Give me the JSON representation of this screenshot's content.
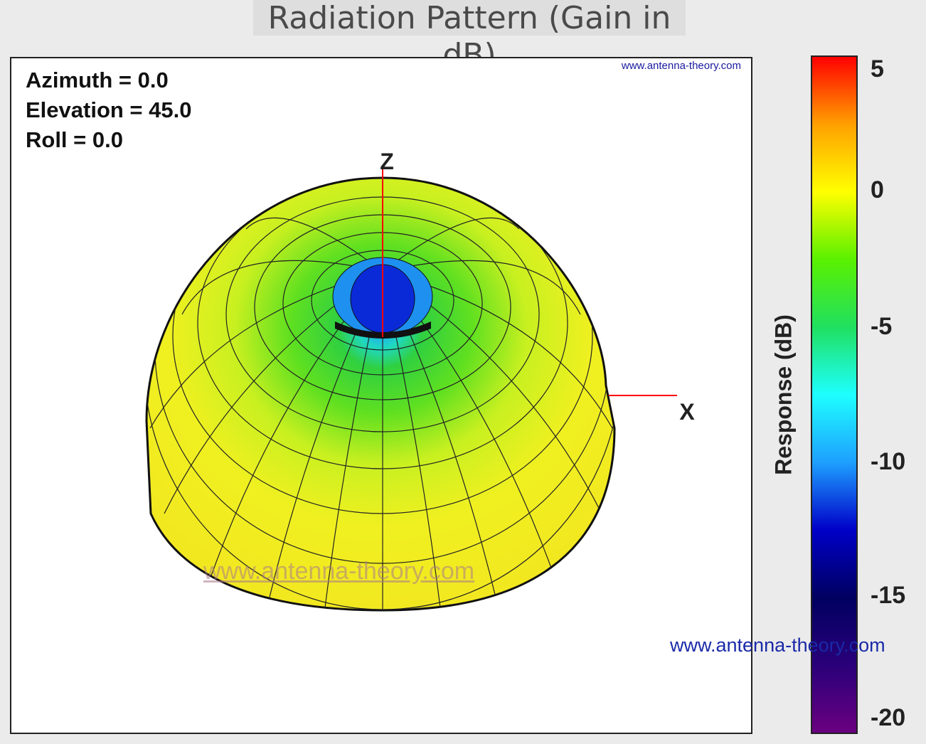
{
  "title": "Radiation Pattern (Gain in dB)",
  "params": [
    "Azimuth = 0.0",
    "Elevation = 45.0",
    "Roll = 0.0"
  ],
  "axes": {
    "z_label": "Z",
    "x_label": "X"
  },
  "watermarks": {
    "small": "www.antenna-theory.com",
    "faint": "www.antenna-theory.com",
    "large": "www.antenna-theory.com"
  },
  "chart_data": {
    "type": "heatmap",
    "title": "Radiation Pattern (Gain in dB)",
    "colorbar": {
      "label": "Response  (dB)",
      "range": [
        -20,
        5
      ],
      "ticks": [
        5,
        0,
        -5,
        -10,
        -15,
        -20
      ],
      "colormap": [
        "#6a0080",
        "#2a007a",
        "#000060",
        "#0000c8",
        "#1ea0ff",
        "#1effff",
        "#20e060",
        "#5af000",
        "#ffff00",
        "#ffa000",
        "#ff0000"
      ]
    },
    "view": {
      "azimuth": 0.0,
      "elevation": 45.0,
      "roll": 0.0
    },
    "description_values": {
      "max_gain_dB": 1,
      "null_gain_dB": -15
    }
  }
}
